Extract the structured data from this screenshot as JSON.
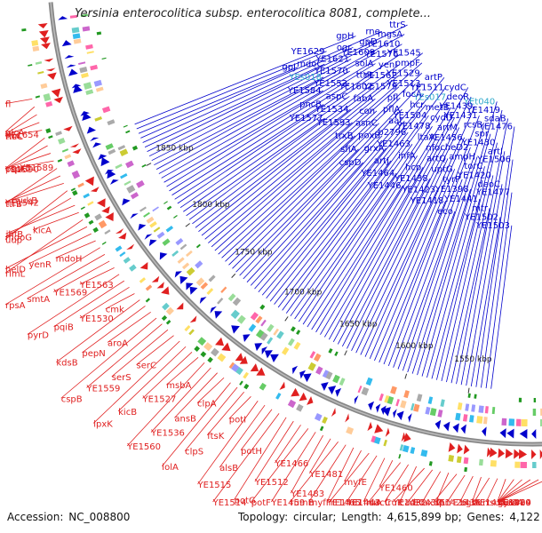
{
  "title": "Yersinia enterocolitica subsp. enterocolitica 8081, complete...",
  "footer": {
    "accession_label": "Accession:",
    "accession": "NC_008800",
    "topology_label": "Topology:",
    "topology": "circular;",
    "length_label": "Length:",
    "length": "4,615,899 bp;",
    "genes_label": "Genes:",
    "genes": "4,122"
  },
  "colors": {
    "forward_strand": "#0000cc",
    "reverse_strand": "#e02020",
    "highlight_label": "#33aacc",
    "backbone": "#888888",
    "tick": "#118811"
  },
  "ticks": [
    "1550 kbp",
    "1600 kbp",
    "1650 kbp",
    "1700 kbp",
    "1750 kbp",
    "1800 kbp",
    "1850 kbp"
  ],
  "forward_labels": [
    "YE1503",
    "YE1477",
    "YE1506",
    "YE1476",
    "YE1502",
    "deoC",
    "artI",
    "sdaB",
    "mtr",
    "YE1420",
    "YE1430",
    "YE1419",
    "YE1441",
    "torC",
    "spr",
    "YEt040",
    "YE1398",
    "ampH",
    "rcsB",
    "eco",
    "tyrP",
    "cheD2",
    "YE1431",
    "YE1418",
    "uptG",
    "YE1456",
    "YE1439",
    "YE1423",
    "artQ",
    "artM",
    "deoR",
    "YE1438",
    "nfo",
    "cydD",
    "cydC",
    "hcp",
    "ltaA",
    "metB",
    "YE1446",
    "infA",
    "YE1478",
    "YEs017",
    "YE1464",
    "YE1463",
    "YE1504",
    "YE1511",
    "artJ",
    "b2796",
    "hcr",
    "artP",
    "grxA",
    "aat",
    "focA",
    "cspD",
    "poxB",
    "pflA",
    "YE1513",
    "sfiA",
    "asnC",
    "pfl",
    "YE1529",
    "trxB",
    "con",
    "YE1579",
    "ompF",
    "YE1593",
    "fabA",
    "YE1562",
    "YE1545",
    "YE1534",
    "YE1602",
    "yenI",
    "YE1577",
    "aspC",
    "ttrR",
    "YE1576",
    "pncB",
    "YE1552",
    "solA",
    "YE1610",
    "YE1584",
    "YE1570",
    "YE1609",
    "mgsA",
    "YEs018",
    "YE1621",
    "gpD",
    "ttrS",
    "mdoC",
    "ogr",
    "rne",
    "gpJ",
    "YE1629",
    "gpH"
  ],
  "reverse_labels": [
    "YE1389",
    "rcsC",
    "gyrA",
    "meoA",
    "YE1404",
    "YE1410",
    "rsuA",
    "YE1416",
    "bcr",
    "bglA",
    "YE1436",
    "YE1426",
    "fpr",
    "uxuA",
    "YE1437",
    "YE1432",
    "cadR",
    "fruK",
    "dacC",
    "YE1460",
    "fruA",
    "YE1443",
    "YE1461",
    "myfE",
    "YE1465",
    "myfF",
    "rumB",
    "YE1481",
    "YE1483",
    "YE1459",
    "potF",
    "YE1466",
    "YE1512",
    "potG",
    "YE1514",
    "potH",
    "alsB",
    "YE1515",
    "potI",
    "ftsK",
    "clpS",
    "lolA",
    "clpA",
    "ansB",
    "YE1536",
    "YE1560",
    "msbA",
    "YE1527",
    "kicB",
    "lpxK",
    "serC",
    "serS",
    "YE1559",
    "cspB",
    "aroA",
    "pepN",
    "kdsB",
    "cmk",
    "YE1530",
    "pqiB",
    "pyrD",
    "YE1563",
    "YE1569",
    "smtA",
    "rpsA",
    "mdoH",
    "yenR",
    "helD",
    "rlmL",
    "kicA",
    "ihfB",
    "mdoG",
    "uup",
    "mukB",
    "YE1542",
    "ttrB",
    "YE1589",
    "cspE2",
    "YE1590",
    "pqiA",
    "rluC",
    "ttrC",
    "YE1654",
    "glcA",
    "fl"
  ]
}
